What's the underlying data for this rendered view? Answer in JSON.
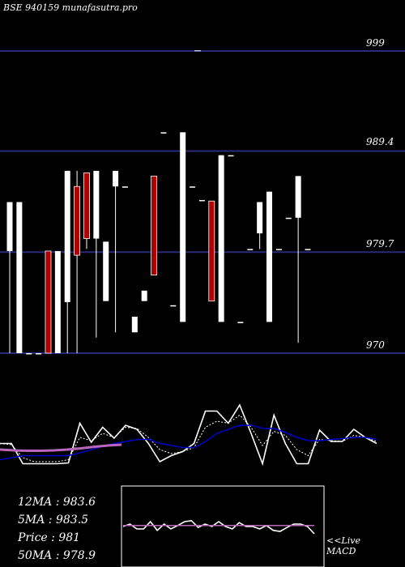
{
  "header": {
    "title": "BSE 940159 munafasutra.pro"
  },
  "chart_data": [
    {
      "type": "candlestick",
      "ylim": [
        970,
        999
      ],
      "y_ticks": [
        {
          "value": 999,
          "label": "999"
        },
        {
          "value": 989.4,
          "label": "989.4"
        },
        {
          "value": 979.7,
          "label": "979.7"
        },
        {
          "value": 970,
          "label": "970"
        }
      ],
      "candles": [
        {
          "o": 979.8,
          "c": 984.5,
          "h": 984.5,
          "l": 970.0,
          "dir": "up"
        },
        {
          "o": 984.5,
          "c": 970.0,
          "h": 984.5,
          "l": 970.0,
          "dir": "flat"
        },
        {
          "o": 970.0,
          "c": 970.0,
          "h": 970.0,
          "l": 970.0,
          "dir": "flat"
        },
        {
          "o": 970.0,
          "c": 970.0,
          "h": 970.0,
          "l": 970.0,
          "dir": "flat"
        },
        {
          "o": 979.8,
          "c": 970.0,
          "h": 979.8,
          "l": 970.0,
          "dir": "down"
        },
        {
          "o": 979.8,
          "c": 970.0,
          "h": 979.8,
          "l": 970.0,
          "dir": "flat"
        },
        {
          "o": 987.5,
          "c": 974.9,
          "h": 987.5,
          "l": 970.0,
          "dir": "up"
        },
        {
          "o": 986.0,
          "c": 979.4,
          "h": 987.5,
          "l": 970.0,
          "dir": "down"
        },
        {
          "o": 987.3,
          "c": 981.0,
          "h": 987.3,
          "l": 980.0,
          "dir": "down"
        },
        {
          "o": 981.0,
          "c": 987.5,
          "h": 987.5,
          "l": 971.5,
          "dir": "up"
        },
        {
          "o": 980.7,
          "c": 975.0,
          "h": 980.7,
          "l": 975.0,
          "dir": "up"
        },
        {
          "o": 986.0,
          "c": 987.5,
          "h": 987.5,
          "l": 972.0,
          "dir": "flat"
        },
        {
          "o": 986.0,
          "c": 986.0,
          "h": 986.0,
          "l": 986.0,
          "dir": "flat"
        },
        {
          "o": 973.5,
          "c": 972.0,
          "h": 973.5,
          "l": 972.0,
          "dir": "up"
        },
        {
          "o": 975.0,
          "c": 976.0,
          "h": 976.0,
          "l": 975.0,
          "dir": "up"
        },
        {
          "o": 987.0,
          "c": 977.5,
          "h": 987.0,
          "l": 977.5,
          "dir": "down"
        },
        {
          "o": 991.2,
          "c": 991.2,
          "h": 991.2,
          "l": 991.2,
          "dir": "flat"
        },
        {
          "o": 974.6,
          "c": 974.6,
          "h": 974.6,
          "l": 974.6,
          "dir": "flat"
        },
        {
          "o": 991.2,
          "c": 973.0,
          "h": 991.2,
          "l": 973.0,
          "dir": "up"
        },
        {
          "o": 986.0,
          "c": 986.0,
          "h": 986.0,
          "l": 986.0,
          "dir": "flat"
        },
        {
          "o": 984.7,
          "c": 984.7,
          "h": 984.7,
          "l": 984.7,
          "dir": "flat"
        },
        {
          "o": 984.6,
          "c": 975.0,
          "h": 984.6,
          "l": 975.0,
          "dir": "down"
        },
        {
          "o": 973.0,
          "c": 989.0,
          "h": 989.0,
          "l": 973.0,
          "dir": "up"
        },
        {
          "o": 989.0,
          "c": 989.0,
          "h": 989.0,
          "l": 989.0,
          "dir": "flat"
        },
        {
          "o": 973.0,
          "c": 973.0,
          "h": 973.0,
          "l": 973.0,
          "dir": "flat"
        },
        {
          "o": 980.0,
          "c": 980.0,
          "h": 980.0,
          "l": 980.0,
          "dir": "flat"
        },
        {
          "o": 981.5,
          "c": 984.5,
          "h": 984.5,
          "l": 980.0,
          "dir": "up"
        },
        {
          "o": 973.0,
          "c": 985.5,
          "h": 985.5,
          "l": 973.0,
          "dir": "up"
        },
        {
          "o": 980.0,
          "c": 980.0,
          "h": 980.0,
          "l": 980.0,
          "dir": "flat"
        },
        {
          "o": 983.0,
          "c": 983.0,
          "h": 983.0,
          "l": 983.0,
          "dir": "flat"
        },
        {
          "o": 983.0,
          "c": 987.0,
          "h": 987.0,
          "l": 971.0,
          "dir": "up"
        },
        {
          "o": 980.0,
          "c": 980.0,
          "h": 980.0,
          "l": 980.0,
          "dir": "flat"
        }
      ],
      "markers": [
        {
          "value": 999.1,
          "note": "tick at top"
        }
      ]
    },
    {
      "type": "line",
      "title": "",
      "series": [
        {
          "color": "#ffffff",
          "values": [
            0.05,
            0.05,
            -0.45,
            -0.45,
            -0.45,
            -0.45,
            -0.43,
            0.55,
            0.08,
            0.45,
            0.18,
            0.5,
            0.4,
            0.05,
            -0.4,
            -0.25,
            -0.15,
            0.05,
            0.85,
            0.85,
            0.55,
            1.0,
            0.3,
            -0.45,
            0.75,
            0.05,
            -0.45,
            -0.45,
            0.38,
            0.1,
            0.1,
            0.4,
            0.2,
            0.05
          ]
        },
        {
          "color": "#ffffff",
          "dash": true,
          "values": [
            0.05,
            0.02,
            -0.3,
            -0.4,
            -0.4,
            -0.4,
            -0.35,
            0.2,
            0.12,
            0.3,
            0.2,
            0.45,
            0.42,
            0.2,
            -0.1,
            -0.2,
            -0.15,
            -0.05,
            0.45,
            0.6,
            0.55,
            0.75,
            0.45,
            0.0,
            0.35,
            0.25,
            -0.1,
            -0.25,
            0.15,
            0.12,
            0.1,
            0.25,
            0.2,
            0.1
          ]
        },
        {
          "color": "#0000cc",
          "values": [
            -0.35,
            -0.3,
            -0.25,
            -0.25,
            -0.25,
            -0.25,
            -0.25,
            -0.18,
            -0.1,
            -0.02,
            0.05,
            0.1,
            0.15,
            0.15,
            0.05,
            0.0,
            -0.05,
            -0.05,
            0.1,
            0.3,
            0.4,
            0.5,
            0.5,
            0.42,
            0.42,
            0.32,
            0.2,
            0.12,
            0.12,
            0.15,
            0.17,
            0.2,
            0.2,
            0.15
          ]
        },
        {
          "color": "#bb66bb",
          "values": [
            -0.1,
            -0.12,
            -0.13,
            -0.13,
            -0.12,
            -0.1,
            -0.07,
            -0.03,
            0.0,
            0.02
          ]
        }
      ]
    },
    {
      "type": "line",
      "title": "MACD",
      "series": [
        {
          "color": "#ffffff",
          "values": [
            0.0,
            0.05,
            -0.05,
            -0.05,
            0.1,
            -0.08,
            0.05,
            -0.05,
            0.02,
            0.1,
            0.12,
            -0.02,
            0.05,
            0.0,
            0.1,
            0.0,
            -0.05,
            0.08,
            0.0,
            0.0,
            -0.05,
            0.02,
            -0.08,
            -0.1,
            -0.02,
            0.05,
            0.05,
            0.0,
            -0.15
          ]
        },
        {
          "color": "#bb66bb",
          "values": [
            0.02,
            0.02,
            0.02,
            0.02,
            0.02,
            0.02,
            0.02,
            0.02,
            0.02,
            0.02,
            0.02,
            0.02,
            0.02,
            0.02,
            0.02,
            0.02,
            0.02,
            0.02,
            0.02,
            0.02,
            0.02,
            0.02,
            0.02,
            0.02,
            0.02,
            0.02,
            0.02,
            0.02,
            0.02
          ]
        }
      ]
    }
  ],
  "stats": [
    {
      "label": "12MA :",
      "value": "983.6"
    },
    {
      "label": "5MA :",
      "value": "983.5"
    },
    {
      "label": "Price :",
      "value": "981"
    },
    {
      "label": "50MA :",
      "value": "978.9"
    }
  ],
  "macd": {
    "live_label": "<<Live",
    "name_label": "MACD"
  },
  "colors": {
    "background": "#000000",
    "gridline": "#2a2a7a",
    "up": "#ffffff",
    "down": "#b00000",
    "ma_blue": "#0000cc",
    "ma_pink": "#bb66bb"
  }
}
